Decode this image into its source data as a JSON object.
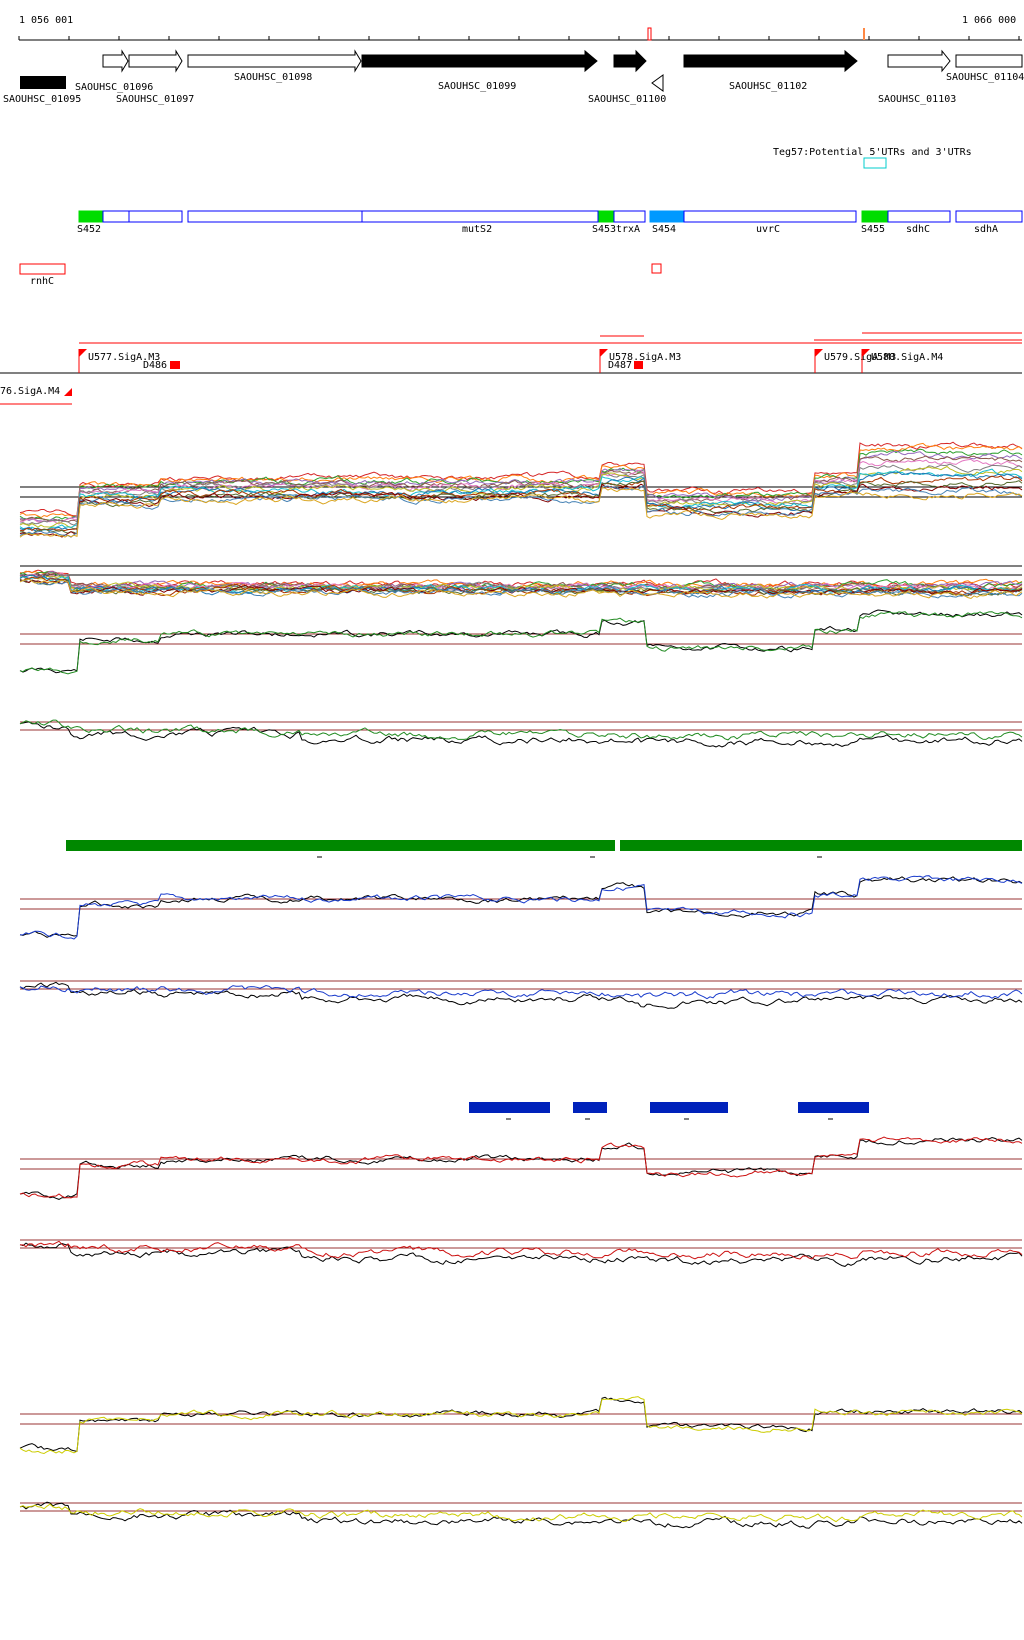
{
  "ruler": {
    "start_label": "1 056 001",
    "end_label": "1 066 000"
  },
  "genes": {
    "SAOUHSC_01095": "SAOUHSC_01095",
    "SAOUHSC_01096": "SAOUHSC_01096",
    "SAOUHSC_01097": "SAOUHSC_01097",
    "SAOUHSC_01098": "SAOUHSC_01098",
    "SAOUHSC_01099": "SAOUHSC_01099",
    "SAOUHSC_01100": "SAOUHSC_01100",
    "SAOUHSC_01102": "SAOUHSC_01102",
    "SAOUHSC_01103": "SAOUHSC_01103",
    "SAOUHSC_01104": "SAOUHSC_01104"
  },
  "teg": {
    "label": "Teg57:Potential 5'UTRs and 3'UTRs"
  },
  "operons": {
    "S452": "S452",
    "mutS2": "mutS2",
    "S453": "S453",
    "trxA": "trxA",
    "S454": "S454",
    "uvrC": "uvrC",
    "S455": "S455",
    "sdhC": "sdhC",
    "sdhA": "sdhA"
  },
  "rnhC": {
    "label": "rnhC"
  },
  "promoters": {
    "U576": "76.SigA.M4",
    "U577": "U577.SigA.M3",
    "D486": "D486",
    "U578": "U578.SigA.M3",
    "D487": "D487",
    "U579": "U579.SigA.M3",
    "U580": "U580.SigA.M4"
  },
  "colors": {
    "gene_fill": "#000000",
    "operon_outline": "#0000ff",
    "operon_green": "#00dd00",
    "operon_lightblue": "#0099ff",
    "teg_cyan": "#00cccc",
    "promoter_red": "#ff0000",
    "green_bar": "#008800",
    "blue_bar": "#0022bb",
    "track_green": "#228b22",
    "track_blue": "#1a3ccc",
    "track_red": "#cc1111",
    "track_yellow": "#cccc00",
    "baseline": "#993333"
  },
  "tracks": [
    {
      "name": "multi-condition-upper",
      "type": "multi"
    },
    {
      "name": "multi-condition-lower",
      "type": "multi"
    },
    {
      "name": "green-upper",
      "color": "track_green"
    },
    {
      "name": "green-lower",
      "color": "track_green"
    },
    {
      "name": "blue-upper",
      "color": "track_blue"
    },
    {
      "name": "blue-lower",
      "color": "track_blue"
    },
    {
      "name": "red-upper",
      "color": "track_red"
    },
    {
      "name": "red-lower",
      "color": "track_red"
    },
    {
      "name": "yellow-upper",
      "color": "track_yellow"
    },
    {
      "name": "yellow-lower",
      "color": "track_yellow"
    }
  ]
}
